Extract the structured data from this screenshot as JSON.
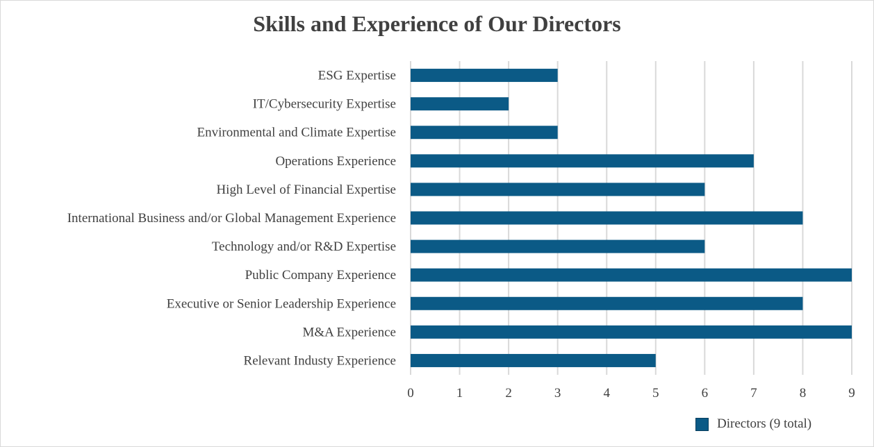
{
  "chart_data": {
    "type": "bar",
    "orientation": "horizontal",
    "title": "Skills and Experience of Our Directors",
    "categories": [
      "ESG Expertise",
      "IT/Cybersecurity Expertise",
      "Environmental and Climate Expertise",
      "Operations Experience",
      "High Level of Financial Expertise",
      "International Business and/or Global Management Experience",
      "Technology and/or R&D Expertise",
      "Public Company Experience",
      "Executive or Senior Leadership Experience",
      "M&A Experience",
      "Relevant Industy Experience"
    ],
    "series": [
      {
        "name": "Directors (9 total)",
        "values": [
          3,
          2,
          3,
          7,
          6,
          8,
          6,
          9,
          8,
          9,
          5
        ]
      }
    ],
    "xlim": [
      0,
      9
    ],
    "xticks": [
      "0",
      "1",
      "2",
      "3",
      "4",
      "5",
      "6",
      "7",
      "8",
      "9"
    ],
    "grid": "vertical",
    "legend": "bottom-right",
    "bar_color": "#0b5a86"
  }
}
